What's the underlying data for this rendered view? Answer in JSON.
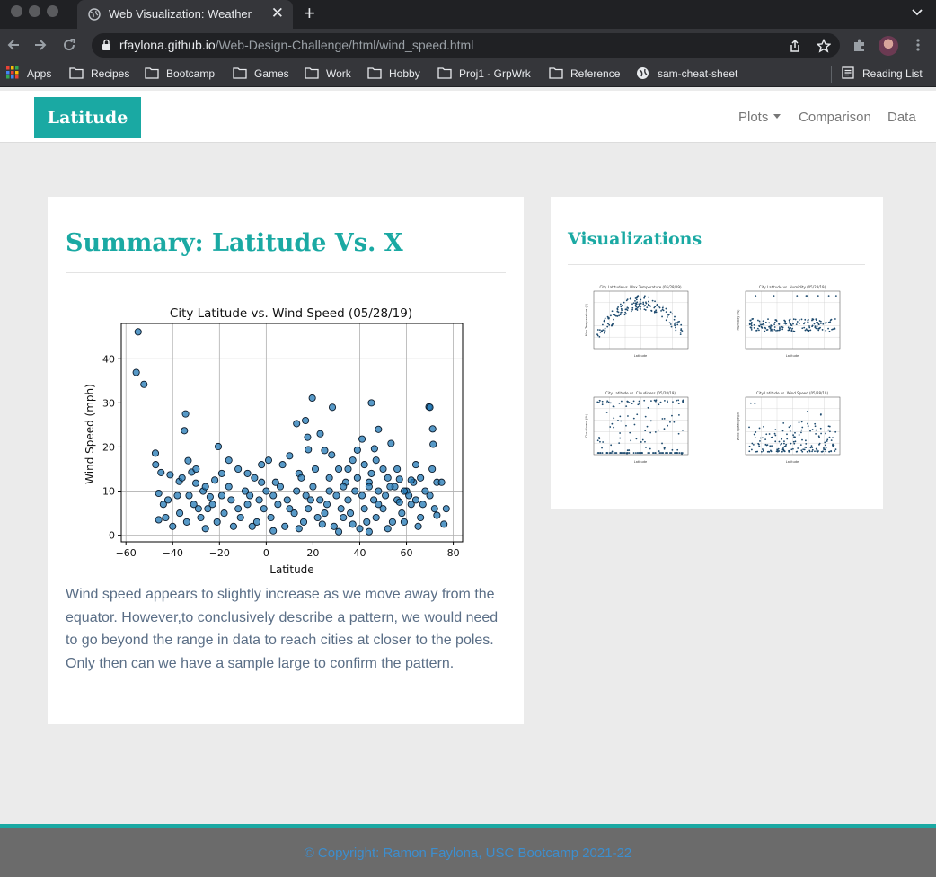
{
  "browser": {
    "tab_title": "Web Visualization: Weather",
    "tab_close": "✕",
    "new_tab": "+",
    "url_host": "rfaylona.github.io",
    "url_path": "/Web-Design-Challenge/html/wind_speed.html",
    "bookmarks": [
      "Apps",
      "Recipes",
      "Bootcamp",
      "Games",
      "Work",
      "Hobby",
      "Proj1 - GrpWrk",
      "Reference",
      "sam-cheat-sheet"
    ],
    "reading_list": "Reading List"
  },
  "navbar": {
    "brand": "Latitude",
    "links": [
      "Plots",
      "Comparison",
      "Data"
    ]
  },
  "main": {
    "heading": "Summary: Latitude Vs. X",
    "summary": "Wind speed appears to slightly increase as we move away from the equator. However,to conclusively describe a pattern, we would need to go beyond the range in data to reach cities at closer to the poles. Only then can we have a sample large to confirm the pattern."
  },
  "sidebar": {
    "heading": "Visualizations",
    "thumbnails": [
      {
        "title": "City Latitude vs. Max Temperature (05/28/19)",
        "ylabel": "Max Temperature (F)",
        "xlabel": "Latitude"
      },
      {
        "title": "City Latitude vs. Humidity (05/28/19)",
        "ylabel": "Humidity (%)",
        "xlabel": "Latitude"
      },
      {
        "title": "City Latitude vs. Cloudiness (05/28/19)",
        "ylabel": "Cloudiness (%)",
        "xlabel": "Latitude"
      },
      {
        "title": "City Latitude vs. Wind Speed (05/28/19)",
        "ylabel": "Wind Speed (mph)",
        "xlabel": "Latitude"
      }
    ]
  },
  "footer": {
    "text": "© Copyright: Ramon Faylona, USC Bootcamp 2021-22"
  },
  "colors": {
    "brand": "#1aa9a3",
    "marker": "#1f77b4",
    "footer_bg": "#6b6b6b",
    "footer_text": "#3c8ecf"
  },
  "chart_data": {
    "type": "scatter",
    "title": "City Latitude vs. Wind Speed (05/28/19)",
    "xlabel": "Latitude",
    "ylabel": "Wind Speed (mph)",
    "xlim": [
      -62,
      84
    ],
    "ylim": [
      -1.5,
      48
    ],
    "xticks": [
      -60,
      -40,
      -20,
      0,
      20,
      40,
      60,
      80
    ],
    "yticks": [
      0,
      10,
      20,
      30,
      40
    ],
    "grid": true,
    "series": [
      {
        "points": [
          [
            -54.8,
            46.1
          ],
          [
            -55.6,
            36.9
          ],
          [
            -52.3,
            34.2
          ],
          [
            -34.5,
            27.5
          ],
          [
            -35.0,
            23.7
          ],
          [
            -20.5,
            20.1
          ],
          [
            13.0,
            25.3
          ],
          [
            16.8,
            26.0
          ],
          [
            17.7,
            22.2
          ],
          [
            19.7,
            31.1
          ],
          [
            23.1,
            23.0
          ],
          [
            28.3,
            29.0
          ],
          [
            41.0,
            21.8
          ],
          [
            45.0,
            30.0
          ],
          [
            48.0,
            24.0
          ],
          [
            46.3,
            19.6
          ],
          [
            53.4,
            20.8
          ],
          [
            69.6,
            29.1
          ],
          [
            70.0,
            29.0
          ],
          [
            71.2,
            24.1
          ],
          [
            71.4,
            20.6
          ],
          [
            -47.4,
            18.6
          ],
          [
            -47.3,
            16.0
          ],
          [
            -45.0,
            14.2
          ],
          [
            -41.1,
            13.7
          ],
          [
            -37.2,
            12.2
          ],
          [
            -33.4,
            16.9
          ],
          [
            -31.9,
            14.3
          ],
          [
            -30.1,
            11.8
          ],
          [
            -27.0,
            10.0
          ],
          [
            -24.0,
            8.7
          ],
          [
            -22.0,
            12.5
          ],
          [
            -19.0,
            14.0
          ],
          [
            -16.0,
            17.0
          ],
          [
            -12.0,
            15.0
          ],
          [
            -9.0,
            10.0
          ],
          [
            -5.0,
            13.0
          ],
          [
            -2.0,
            16.0
          ],
          [
            1.0,
            17.0
          ],
          [
            4.0,
            12.0
          ],
          [
            7.0,
            16.0
          ],
          [
            10.0,
            18.0
          ],
          [
            14.0,
            14.0
          ],
          [
            18.0,
            19.4
          ],
          [
            21.0,
            15.0
          ],
          [
            25.0,
            19.2
          ],
          [
            28.0,
            18.2
          ],
          [
            31.0,
            15.0
          ],
          [
            34.0,
            12.0
          ],
          [
            37.0,
            17.0
          ],
          [
            39.0,
            19.3
          ],
          [
            42.0,
            16.0
          ],
          [
            44.0,
            12.0
          ],
          [
            47.0,
            17.0
          ],
          [
            50.0,
            15.0
          ],
          [
            52.0,
            13.0
          ],
          [
            55.0,
            11.0
          ],
          [
            57.0,
            12.7
          ],
          [
            60.0,
            10.0
          ],
          [
            63.0,
            12.0
          ],
          [
            66.0,
            13.0
          ],
          [
            68.0,
            10.0
          ],
          [
            71.0,
            15.0
          ],
          [
            73.0,
            12.0
          ],
          [
            75.0,
            12.0
          ],
          [
            77.0,
            6.0
          ],
          [
            76.0,
            2.5
          ],
          [
            66.0,
            4.0
          ],
          [
            62.0,
            7.0
          ],
          [
            58.0,
            5.0
          ],
          [
            54.0,
            3.0
          ],
          [
            50.0,
            6.0
          ],
          [
            46.0,
            8.0
          ],
          [
            43.0,
            3.0
          ],
          [
            40.0,
            1.5
          ],
          [
            36.0,
            5.0
          ],
          [
            32.0,
            6.0
          ],
          [
            29.0,
            2.0
          ],
          [
            26.0,
            7.0
          ],
          [
            22.0,
            4.0
          ],
          [
            19.0,
            8.0
          ],
          [
            16.0,
            3.0
          ],
          [
            12.0,
            5.0
          ],
          [
            8.0,
            2.0
          ],
          [
            5.0,
            7.0
          ],
          [
            2.0,
            4.0
          ],
          [
            -1.0,
            6.0
          ],
          [
            -4.0,
            3.0
          ],
          [
            -8.0,
            7.0
          ],
          [
            -11.0,
            4.0
          ],
          [
            -14.0,
            2.0
          ],
          [
            -18.0,
            5.0
          ],
          [
            -21.0,
            3.0
          ],
          [
            -25.0,
            6.0
          ],
          [
            -28.0,
            4.0
          ],
          [
            -31.0,
            7.0
          ],
          [
            -34.0,
            3.0
          ],
          [
            -37.0,
            5.0
          ],
          [
            -40.0,
            2.0
          ],
          [
            -43.0,
            4.0
          ],
          [
            -46.0,
            3.5
          ],
          [
            -46.0,
            9.5
          ],
          [
            -42.0,
            8.0
          ],
          [
            -38.0,
            9.0
          ],
          [
            -33.0,
            9.0
          ],
          [
            -29.0,
            6.0
          ],
          [
            -26.0,
            11.0
          ],
          [
            -23.0,
            7.0
          ],
          [
            -19.0,
            9.0
          ],
          [
            -15.0,
            8.0
          ],
          [
            -12.0,
            6.0
          ],
          [
            -7.0,
            9.0
          ],
          [
            -3.0,
            8.0
          ],
          [
            0.0,
            10.0
          ],
          [
            3.0,
            9.0
          ],
          [
            6.0,
            11.0
          ],
          [
            9.0,
            8.0
          ],
          [
            13.0,
            10.0
          ],
          [
            17.0,
            9.0
          ],
          [
            20.0,
            11.0
          ],
          [
            23.0,
            8.0
          ],
          [
            27.0,
            10.0
          ],
          [
            30.0,
            9.0
          ],
          [
            33.0,
            11.0
          ],
          [
            35.0,
            8.0
          ],
          [
            38.0,
            10.0
          ],
          [
            41.0,
            9.0
          ],
          [
            44.0,
            11.0
          ],
          [
            48.0,
            10.0
          ],
          [
            51.0,
            9.0
          ],
          [
            53.0,
            11.0
          ],
          [
            56.0,
            8.0
          ],
          [
            59.0,
            10.0
          ],
          [
            61.0,
            9.0
          ],
          [
            64.0,
            8.0
          ],
          [
            67.0,
            7.0
          ],
          [
            70.0,
            9.0
          ],
          [
            72.0,
            6.0
          ],
          [
            65.0,
            2.0
          ],
          [
            59.0,
            3.0
          ],
          [
            52.0,
            1.5
          ],
          [
            47.0,
            4.0
          ],
          [
            42.0,
            6.0
          ],
          [
            37.0,
            2.5
          ],
          [
            33.0,
            4.0
          ],
          [
            24.0,
            2.5
          ],
          [
            14.0,
            1.5
          ],
          [
            10.0,
            6.0
          ],
          [
            -6.0,
            2.0
          ],
          [
            -16.0,
            11.0
          ],
          [
            -36.0,
            13.0
          ],
          [
            -30.0,
            15.0
          ],
          [
            -8.0,
            14.0
          ],
          [
            15.0,
            13.0
          ],
          [
            27.0,
            13.0
          ],
          [
            45.0,
            14.0
          ],
          [
            56.0,
            15.0
          ],
          [
            64.0,
            16.0
          ],
          [
            35.0,
            15.0
          ],
          [
            48.0,
            7.0
          ],
          [
            57.0,
            7.5
          ],
          [
            3.0,
            1.0
          ],
          [
            -26.0,
            1.5
          ],
          [
            31.0,
            0.8
          ],
          [
            44.0,
            0.8
          ],
          [
            73.0,
            4.5
          ],
          [
            62.0,
            12.5
          ],
          [
            39.0,
            13.0
          ],
          [
            18.0,
            6.0
          ],
          [
            -44.0,
            7.0
          ],
          [
            -2.0,
            12.0
          ],
          [
            25.0,
            5.0
          ]
        ]
      }
    ]
  }
}
